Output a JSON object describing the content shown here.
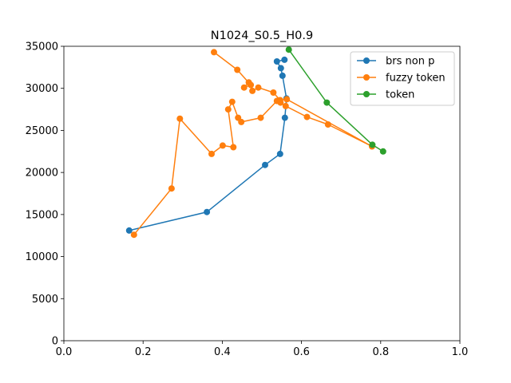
{
  "chart_data": {
    "type": "line",
    "title": "N1024_S0.5_H0.9",
    "xlabel": "",
    "ylabel": "",
    "xlim": [
      0,
      1.0
    ],
    "ylim": [
      0,
      35000
    ],
    "xticks": [
      0.0,
      0.2,
      0.4,
      0.6,
      0.8,
      1.0
    ],
    "xtick_labels": [
      "0.0",
      "0.2",
      "0.4",
      "0.6",
      "0.8",
      "1.0"
    ],
    "yticks": [
      0,
      5000,
      10000,
      15000,
      20000,
      25000,
      30000,
      35000
    ],
    "ytick_labels": [
      "0",
      "5000",
      "10000",
      "15000",
      "20000",
      "25000",
      "30000",
      "35000"
    ],
    "grid": false,
    "legend_position": "top-right",
    "series": [
      {
        "name": "brs non p",
        "color": "#1f77b4",
        "x": [
          0.165,
          0.361,
          0.508,
          0.546,
          0.558,
          0.562,
          0.552,
          0.548,
          0.538,
          0.557
        ],
        "y": [
          13100,
          15300,
          20900,
          22200,
          26500,
          28800,
          31500,
          32400,
          33200,
          33400
        ]
      },
      {
        "name": "fuzzy token",
        "color": "#ff7f0e",
        "x": [
          0.177,
          0.272,
          0.293,
          0.373,
          0.401,
          0.428,
          0.415,
          0.425,
          0.44,
          0.448,
          0.497,
          0.538,
          0.547,
          0.56,
          0.614,
          0.667,
          0.778,
          0.563,
          0.546,
          0.529,
          0.491,
          0.476,
          0.467,
          0.455,
          0.472,
          0.438,
          0.379
        ],
        "y": [
          12600,
          18100,
          26400,
          22200,
          23200,
          23000,
          27500,
          28400,
          26500,
          26000,
          26500,
          28500,
          28300,
          27900,
          26600,
          25700,
          23100,
          28700,
          28600,
          29500,
          30100,
          29700,
          30700,
          30100,
          30400,
          32200,
          34300
        ]
      },
      {
        "name": "token",
        "color": "#2ca02c",
        "x": [
          0.806,
          0.779,
          0.664,
          0.568
        ],
        "y": [
          22500,
          23300,
          28300,
          34600
        ]
      }
    ]
  }
}
